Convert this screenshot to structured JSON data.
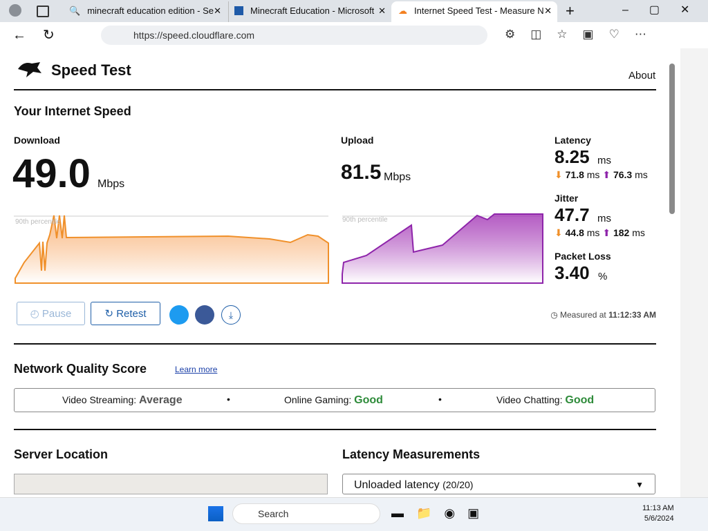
{
  "browser": {
    "tabs": [
      "minecraft education edition - Se",
      "Minecraft Education - Microsoft",
      "Internet Speed Test - Measure N"
    ],
    "url": "https://speed.cloudflare.com"
  },
  "header": {
    "brand": "Speed Test",
    "nav": "About"
  },
  "speed": {
    "heading": "Your Internet Speed",
    "download": {
      "label": "Download",
      "value": "49.0",
      "unit": "Mbps",
      "percentile": "90th percentile"
    },
    "upload": {
      "label": "Upload",
      "value": "81.5",
      "unit": "Mbps",
      "percentile": "90th percentile"
    },
    "latency": {
      "label": "Latency",
      "value": "8.25",
      "unit": "ms",
      "down": "71.8",
      "down_unit": "ms",
      "up": "76.3",
      "up_unit": "ms"
    },
    "jitter": {
      "label": "Jitter",
      "value": "47.7",
      "unit": "ms",
      "down": "44.8",
      "down_unit": "ms",
      "up": "182",
      "up_unit": "ms"
    },
    "packet_loss": {
      "label": "Packet Loss",
      "value": "3.40",
      "unit": "%"
    },
    "buttons": {
      "pause": "Pause",
      "retest": "Retest"
    },
    "measured": {
      "label": "Measured at",
      "time": "11:12:33 AM"
    }
  },
  "quality": {
    "heading": "Network Quality Score",
    "link": "Learn more",
    "items": [
      {
        "label": "Video Streaming:",
        "value": "Average"
      },
      {
        "label": "Online Gaming:",
        "value": "Good"
      },
      {
        "label": "Video Chatting:",
        "value": "Good"
      }
    ]
  },
  "server": {
    "heading": "Server Location"
  },
  "latency_measurements": {
    "heading": "Latency Measurements",
    "select": "Unloaded latency",
    "count": "(20/20)"
  },
  "taskbar": {
    "search": "Search",
    "time": "11:13 AM",
    "date": "5/6/2024"
  }
}
